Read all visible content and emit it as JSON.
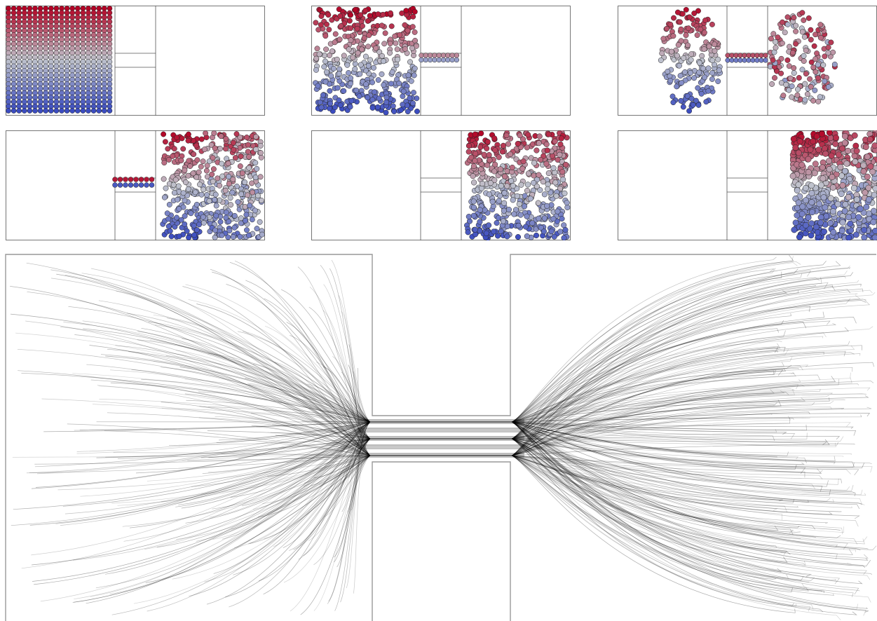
{
  "figure": {
    "colormap": {
      "low": "#3b4cc0",
      "mid": "#bfc2cc",
      "high": "#b40426"
    },
    "wall_color": "#555555",
    "trajectory_color": "#000000"
  },
  "snapshots": [
    {
      "id": "snapshot-1",
      "stage": "initial-grid"
    },
    {
      "id": "snapshot-2",
      "stage": "entering-channel"
    },
    {
      "id": "snapshot-3",
      "stage": "splitting-through-channel"
    },
    {
      "id": "snapshot-4",
      "stage": "mostly-through"
    },
    {
      "id": "snapshot-5",
      "stage": "through"
    },
    {
      "id": "snapshot-6",
      "stage": "packed-right"
    }
  ],
  "trajectory_panel": {
    "id": "trajectory-panel",
    "stage": "all-trajectories"
  }
}
